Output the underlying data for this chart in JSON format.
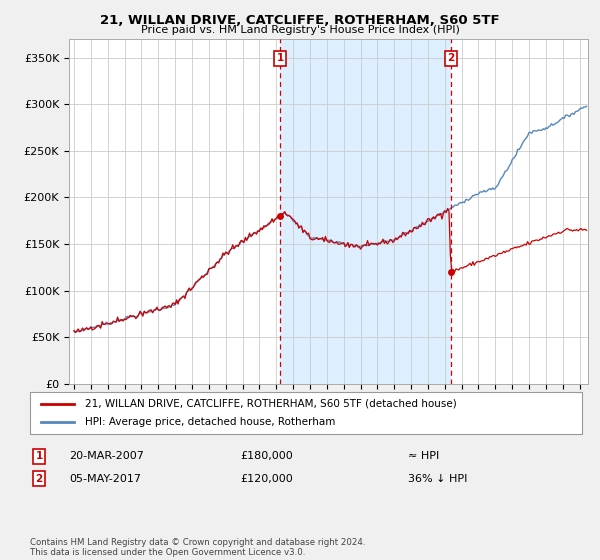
{
  "title": "21, WILLAN DRIVE, CATCLIFFE, ROTHERHAM, S60 5TF",
  "subtitle": "Price paid vs. HM Land Registry's House Price Index (HPI)",
  "ylim": [
    0,
    370000
  ],
  "yticks": [
    0,
    50000,
    100000,
    150000,
    200000,
    250000,
    300000,
    350000
  ],
  "ytick_labels": [
    "£0",
    "£50K",
    "£100K",
    "£150K",
    "£200K",
    "£250K",
    "£300K",
    "£350K"
  ],
  "xlim_start": 1994.7,
  "xlim_end": 2025.5,
  "sale1_date": 2007.22,
  "sale1_price": 180000,
  "sale2_date": 2017.36,
  "sale2_price": 120000,
  "house_color": "#cc0000",
  "hpi_color": "#5588bb",
  "shade_color": "#ddeeff",
  "background_color": "#f0f0f0",
  "plot_bg_color": "#ffffff",
  "grid_color": "#cccccc",
  "legend_entry1": "21, WILLAN DRIVE, CATCLIFFE, ROTHERHAM, S60 5TF (detached house)",
  "legend_entry2": "HPI: Average price, detached house, Rotherham",
  "annotation1_date": "20-MAR-2007",
  "annotation1_price": "£180,000",
  "annotation1_vs": "≈ HPI",
  "annotation2_date": "05-MAY-2017",
  "annotation2_price": "£120,000",
  "annotation2_vs": "36% ↓ HPI",
  "footer": "Contains HM Land Registry data © Crown copyright and database right 2024.\nThis data is licensed under the Open Government Licence v3.0."
}
